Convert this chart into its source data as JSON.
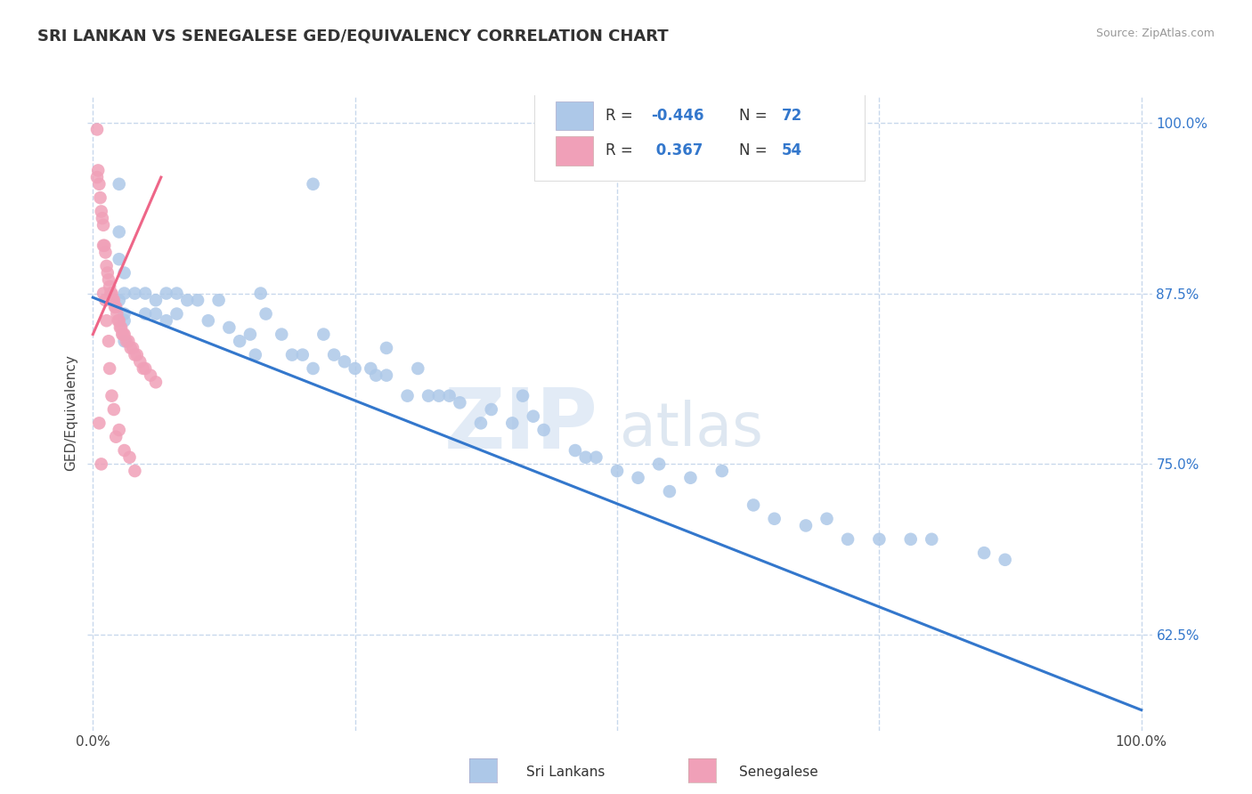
{
  "title": "SRI LANKAN VS SENEGALESE GED/EQUIVALENCY CORRELATION CHART",
  "source": "Source: ZipAtlas.com",
  "ylabel": "GED/Equivalency",
  "legend_blue_r": "-0.446",
  "legend_blue_n": "72",
  "legend_pink_r": "0.367",
  "legend_pink_n": "54",
  "blue_color": "#adc8e8",
  "pink_color": "#f0a0b8",
  "blue_line_color": "#3377cc",
  "pink_line_color": "#ee6688",
  "watermark_zip": "ZIP",
  "watermark_atlas": "atlas",
  "grid_color": "#c8d8ec",
  "blue_scatter_x": [
    0.025,
    0.21,
    0.025,
    0.025,
    0.025,
    0.03,
    0.03,
    0.03,
    0.03,
    0.03,
    0.04,
    0.05,
    0.05,
    0.06,
    0.06,
    0.07,
    0.07,
    0.08,
    0.08,
    0.09,
    0.1,
    0.11,
    0.12,
    0.13,
    0.14,
    0.15,
    0.155,
    0.16,
    0.165,
    0.18,
    0.19,
    0.2,
    0.21,
    0.22,
    0.23,
    0.24,
    0.25,
    0.265,
    0.27,
    0.28,
    0.28,
    0.3,
    0.31,
    0.32,
    0.33,
    0.34,
    0.35,
    0.37,
    0.38,
    0.4,
    0.41,
    0.42,
    0.43,
    0.46,
    0.47,
    0.48,
    0.5,
    0.52,
    0.54,
    0.55,
    0.57,
    0.6,
    0.63,
    0.65,
    0.68,
    0.7,
    0.72,
    0.75,
    0.78,
    0.8,
    0.85,
    0.87
  ],
  "blue_scatter_y": [
    0.955,
    0.955,
    0.92,
    0.9,
    0.87,
    0.89,
    0.875,
    0.86,
    0.855,
    0.84,
    0.875,
    0.875,
    0.86,
    0.87,
    0.86,
    0.875,
    0.855,
    0.875,
    0.86,
    0.87,
    0.87,
    0.855,
    0.87,
    0.85,
    0.84,
    0.845,
    0.83,
    0.875,
    0.86,
    0.845,
    0.83,
    0.83,
    0.82,
    0.845,
    0.83,
    0.825,
    0.82,
    0.82,
    0.815,
    0.835,
    0.815,
    0.8,
    0.82,
    0.8,
    0.8,
    0.8,
    0.795,
    0.78,
    0.79,
    0.78,
    0.8,
    0.785,
    0.775,
    0.76,
    0.755,
    0.755,
    0.745,
    0.74,
    0.75,
    0.73,
    0.74,
    0.745,
    0.72,
    0.71,
    0.705,
    0.71,
    0.695,
    0.695,
    0.695,
    0.695,
    0.685,
    0.68
  ],
  "pink_scatter_x": [
    0.004,
    0.004,
    0.005,
    0.006,
    0.007,
    0.008,
    0.009,
    0.01,
    0.01,
    0.011,
    0.012,
    0.013,
    0.014,
    0.015,
    0.016,
    0.017,
    0.018,
    0.019,
    0.02,
    0.021,
    0.022,
    0.023,
    0.024,
    0.025,
    0.026,
    0.027,
    0.028,
    0.029,
    0.03,
    0.032,
    0.034,
    0.036,
    0.038,
    0.04,
    0.042,
    0.045,
    0.048,
    0.05,
    0.055,
    0.06,
    0.01,
    0.012,
    0.013,
    0.015,
    0.016,
    0.018,
    0.02,
    0.006,
    0.022,
    0.025,
    0.03,
    0.035,
    0.008,
    0.04
  ],
  "pink_scatter_y": [
    0.995,
    0.96,
    0.965,
    0.955,
    0.945,
    0.935,
    0.93,
    0.925,
    0.91,
    0.91,
    0.905,
    0.895,
    0.89,
    0.885,
    0.88,
    0.875,
    0.875,
    0.87,
    0.87,
    0.865,
    0.865,
    0.86,
    0.855,
    0.855,
    0.85,
    0.85,
    0.845,
    0.845,
    0.845,
    0.84,
    0.84,
    0.835,
    0.835,
    0.83,
    0.83,
    0.825,
    0.82,
    0.82,
    0.815,
    0.81,
    0.875,
    0.87,
    0.855,
    0.84,
    0.82,
    0.8,
    0.79,
    0.78,
    0.77,
    0.775,
    0.76,
    0.755,
    0.75,
    0.745
  ],
  "blue_line_x": [
    0.0,
    1.0
  ],
  "blue_line_y": [
    0.872,
    0.57
  ],
  "pink_line_x": [
    0.0,
    0.065
  ],
  "pink_line_y": [
    0.845,
    0.96
  ],
  "xlim": [
    -0.005,
    1.01
  ],
  "ylim": [
    0.555,
    1.02
  ],
  "yticks": [
    0.625,
    0.75,
    0.875,
    1.0
  ],
  "ytick_labels": [
    "62.5%",
    "75.0%",
    "87.5%",
    "100.0%"
  ],
  "xtick_vals": [
    0.0,
    1.0
  ],
  "xtick_labels": [
    "0.0%",
    "100.0%"
  ],
  "background_color": "#ffffff"
}
